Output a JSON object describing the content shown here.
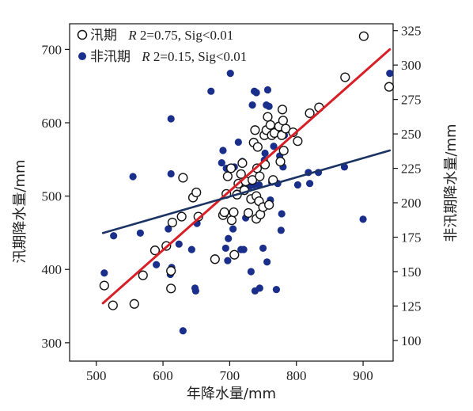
{
  "chart_data": {
    "type": "scatter",
    "xlabel": "年降水量/mm",
    "ylabel_left": "汛期降水量/mm",
    "ylabel_right": "非汛期降水量/mm",
    "xlim": [
      460,
      945
    ],
    "ylim_left": [
      275,
      735
    ],
    "ylim_right": [
      85,
      330
    ],
    "xticks": [
      "500",
      "600",
      "700",
      "800",
      "900"
    ],
    "yticks_left": [
      "300",
      "400",
      "500",
      "600",
      "700"
    ],
    "yticks_right": [
      "100",
      "125",
      "150",
      "175",
      "200",
      "225",
      "250",
      "275",
      "300",
      "325"
    ],
    "colors": {
      "flood_marker_fill": "#ffffff",
      "flood_marker_stroke": "#111111",
      "nonflood_marker": "#1a2f8c",
      "flood_line": "#d81f26",
      "nonflood_line": "#1c3464"
    },
    "legend": [
      {
        "name": "汛期",
        "stat_label": "R",
        "stat_value": "2=0.75, Sig<0.01"
      },
      {
        "name": "非汛期",
        "stat_label": "R",
        "stat_value": "2=0.15, Sig<0.01"
      }
    ],
    "series": [
      {
        "name": "汛期",
        "axis": "left",
        "marker": "open-circle",
        "points": [
          [
            512,
            378
          ],
          [
            525,
            351
          ],
          [
            557,
            353
          ],
          [
            570,
            392
          ],
          [
            588,
            426
          ],
          [
            605,
            432
          ],
          [
            612,
            398
          ],
          [
            614,
            464
          ],
          [
            612,
            374
          ],
          [
            628,
            472
          ],
          [
            630,
            525
          ],
          [
            645,
            498
          ],
          [
            650,
            505
          ],
          [
            653,
            472
          ],
          [
            678,
            414
          ],
          [
            690,
            474
          ],
          [
            692,
            478
          ],
          [
            695,
            503
          ],
          [
            697,
            527
          ],
          [
            702,
            538
          ],
          [
            703,
            467
          ],
          [
            707,
            420
          ],
          [
            706,
            478
          ],
          [
            711,
            502
          ],
          [
            713,
            517
          ],
          [
            717,
            530
          ],
          [
            719,
            545
          ],
          [
            722,
            508
          ],
          [
            724,
            520
          ],
          [
            728,
            477
          ],
          [
            732,
            496
          ],
          [
            734,
            522
          ],
          [
            736,
            573
          ],
          [
            738,
            590
          ],
          [
            740,
            469
          ],
          [
            740,
            500
          ],
          [
            741,
            538
          ],
          [
            742,
            567
          ],
          [
            744,
            493
          ],
          [
            745,
            527
          ],
          [
            746,
            475
          ],
          [
            750,
            485
          ],
          [
            752,
            583
          ],
          [
            753,
            543
          ],
          [
            755,
            590
          ],
          [
            757,
            608
          ],
          [
            759,
            488
          ],
          [
            761,
            597
          ],
          [
            763,
            583
          ],
          [
            765,
            522
          ],
          [
            767,
            586
          ],
          [
            774,
            595
          ],
          [
            776,
            547
          ],
          [
            778,
            583
          ],
          [
            779,
            618
          ],
          [
            780,
            603
          ],
          [
            781,
            562
          ],
          [
            784,
            592
          ],
          [
            795,
            587
          ],
          [
            802,
            575
          ],
          [
            820,
            613
          ],
          [
            834,
            621
          ],
          [
            873,
            662
          ],
          [
            901,
            718
          ],
          [
            939,
            649
          ]
        ]
      },
      {
        "name": "非汛期",
        "axis": "right",
        "marker": "filled-circle",
        "points": [
          [
            512,
            149
          ],
          [
            526,
            176
          ],
          [
            555,
            219
          ],
          [
            566,
            178
          ],
          [
            590,
            155
          ],
          [
            608,
            181
          ],
          [
            611,
            148
          ],
          [
            612,
            221
          ],
          [
            612,
            261
          ],
          [
            613,
            153
          ],
          [
            624,
            170
          ],
          [
            630,
            107
          ],
          [
            643,
            166
          ],
          [
            648,
            138
          ],
          [
            649,
            136
          ],
          [
            651,
            185
          ],
          [
            672,
            281
          ],
          [
            688,
            229
          ],
          [
            690,
            238
          ],
          [
            694,
            167
          ],
          [
            695,
            225
          ],
          [
            697,
            158
          ],
          [
            698,
            174
          ],
          [
            701,
            294
          ],
          [
            705,
            181
          ],
          [
            707,
            226
          ],
          [
            711,
            207
          ],
          [
            713,
            244
          ],
          [
            717,
            166
          ],
          [
            719,
            230
          ],
          [
            721,
            166
          ],
          [
            724,
            189
          ],
          [
            730,
            212
          ],
          [
            732,
            150
          ],
          [
            734,
            271
          ],
          [
            736,
            213
          ],
          [
            737,
            281
          ],
          [
            738,
            136
          ],
          [
            740,
            280
          ],
          [
            741,
            188
          ],
          [
            744,
            213
          ],
          [
            745,
            138
          ],
          [
            750,
            167
          ],
          [
            752,
            231
          ],
          [
            753,
            236
          ],
          [
            755,
            271
          ],
          [
            756,
            157
          ],
          [
            757,
            282
          ],
          [
            759,
            270
          ],
          [
            761,
            202
          ],
          [
            763,
            215
          ],
          [
            766,
            241
          ],
          [
            770,
            137
          ],
          [
            772,
            214
          ],
          [
            775,
            234
          ],
          [
            777,
            180
          ],
          [
            778,
            192
          ],
          [
            780,
            226
          ],
          [
            782,
            249
          ],
          [
            785,
            253
          ],
          [
            802,
            213
          ],
          [
            818,
            222
          ],
          [
            820,
            214
          ],
          [
            833,
            222
          ],
          [
            872,
            226
          ],
          [
            900,
            188
          ],
          [
            940,
            294
          ]
        ]
      }
    ],
    "trendlines": [
      {
        "series": "汛期",
        "axis": "left",
        "x": [
          510,
          940
        ],
        "y": [
          354,
          700
        ]
      },
      {
        "series": "非汛期",
        "axis": "right",
        "x": [
          510,
          940
        ],
        "y": [
          178,
          238
        ]
      }
    ]
  }
}
